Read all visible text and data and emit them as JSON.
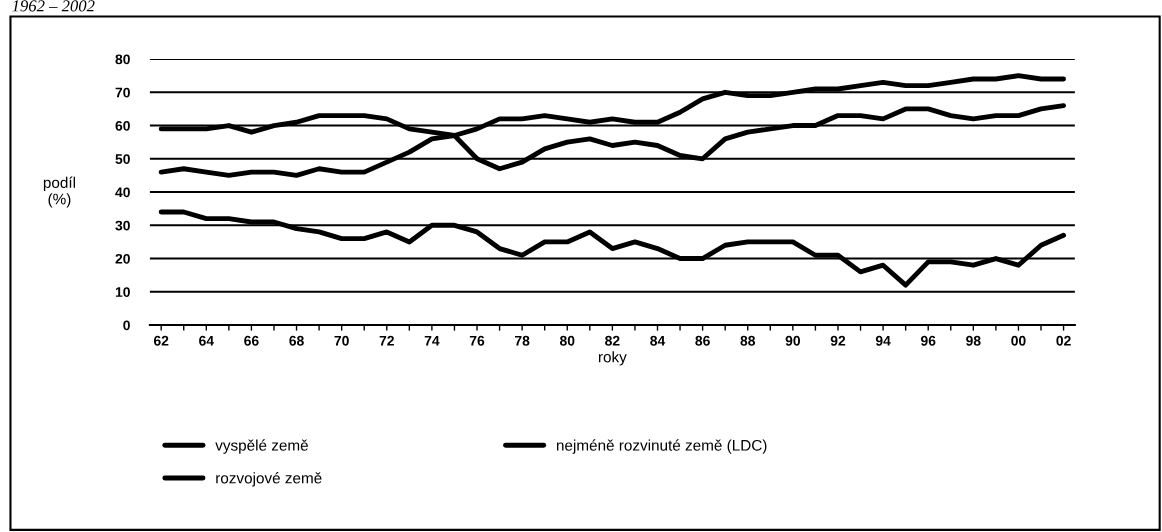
{
  "chart_data": {
    "type": "line",
    "title": "1962 – 2002",
    "xlabel": "roky",
    "ylabel": "podíl\n(%)",
    "x": [
      1962,
      1963,
      1964,
      1965,
      1966,
      1967,
      1968,
      1969,
      1970,
      1971,
      1972,
      1973,
      1974,
      1975,
      1976,
      1977,
      1978,
      1979,
      1980,
      1981,
      1982,
      1983,
      1984,
      1985,
      1986,
      1987,
      1988,
      1989,
      1990,
      1991,
      1992,
      1993,
      1994,
      1995,
      1996,
      1997,
      1998,
      1999,
      2000,
      2001,
      2002
    ],
    "series": [
      {
        "name": "vyspělé země",
        "color": "#000000",
        "values": [
          59,
          59,
          59,
          60,
          58,
          60,
          61,
          63,
          63,
          63,
          62,
          59,
          58,
          57,
          50,
          47,
          49,
          53,
          55,
          56,
          54,
          55,
          54,
          51,
          50,
          56,
          58,
          59,
          60,
          60,
          63,
          63,
          62,
          65,
          65,
          63,
          62,
          63,
          63,
          65,
          66
        ]
      },
      {
        "name": "rozvojové země",
        "color": "#000000",
        "values": [
          46,
          47,
          46,
          45,
          46,
          46,
          45,
          47,
          46,
          46,
          49,
          52,
          56,
          57,
          59,
          62,
          62,
          63,
          62,
          61,
          62,
          61,
          61,
          64,
          68,
          70,
          69,
          69,
          70,
          71,
          71,
          72,
          73,
          72,
          72,
          73,
          74,
          74,
          75,
          74,
          74
        ]
      },
      {
        "name": "nejméně rozvinuté země (LDC)",
        "color": "#000000",
        "values": [
          34,
          34,
          32,
          32,
          31,
          31,
          29,
          28,
          26,
          26,
          28,
          25,
          30,
          30,
          28,
          23,
          21,
          25,
          25,
          28,
          23,
          25,
          23,
          20,
          20,
          24,
          25,
          25,
          25,
          21,
          21,
          16,
          18,
          12,
          19,
          19,
          18,
          20,
          18,
          24,
          27
        ]
      }
    ],
    "xlim": [
      1961.5,
      2002.5
    ],
    "ylim": [
      0,
      80
    ],
    "xticks": [
      {
        "value": 1962,
        "label": "62"
      },
      {
        "value": 1963,
        "label": null
      },
      {
        "value": 1964,
        "label": "64"
      },
      {
        "value": 1965,
        "label": null
      },
      {
        "value": 1966,
        "label": "66"
      },
      {
        "value": 1967,
        "label": null
      },
      {
        "value": 1968,
        "label": "68"
      },
      {
        "value": 1969,
        "label": null
      },
      {
        "value": 1970,
        "label": "70"
      },
      {
        "value": 1971,
        "label": null
      },
      {
        "value": 1972,
        "label": "72"
      },
      {
        "value": 1973,
        "label": null
      },
      {
        "value": 1974,
        "label": "74"
      },
      {
        "value": 1975,
        "label": null
      },
      {
        "value": 1976,
        "label": "76"
      },
      {
        "value": 1977,
        "label": null
      },
      {
        "value": 1978,
        "label": "78"
      },
      {
        "value": 1979,
        "label": null
      },
      {
        "value": 1980,
        "label": "80"
      },
      {
        "value": 1981,
        "label": null
      },
      {
        "value": 1982,
        "label": "82"
      },
      {
        "value": 1983,
        "label": null
      },
      {
        "value": 1984,
        "label": "84"
      },
      {
        "value": 1985,
        "label": null
      },
      {
        "value": 1986,
        "label": "86"
      },
      {
        "value": 1987,
        "label": null
      },
      {
        "value": 1988,
        "label": "88"
      },
      {
        "value": 1989,
        "label": null
      },
      {
        "value": 1990,
        "label": "90"
      },
      {
        "value": 1991,
        "label": null
      },
      {
        "value": 1992,
        "label": "92"
      },
      {
        "value": 1993,
        "label": null
      },
      {
        "value": 1994,
        "label": "94"
      },
      {
        "value": 1995,
        "label": null
      },
      {
        "value": 1996,
        "label": "96"
      },
      {
        "value": 1997,
        "label": null
      },
      {
        "value": 1998,
        "label": "98"
      },
      {
        "value": 1999,
        "label": null
      },
      {
        "value": 2000,
        "label": "00"
      },
      {
        "value": 2001,
        "label": null
      },
      {
        "value": 2002,
        "label": "02"
      }
    ],
    "yticks": [
      0,
      10,
      20,
      30,
      40,
      50,
      60,
      70,
      80
    ],
    "grid": "y",
    "legend": "bottom",
    "marker": "none",
    "line_style": "solid"
  }
}
